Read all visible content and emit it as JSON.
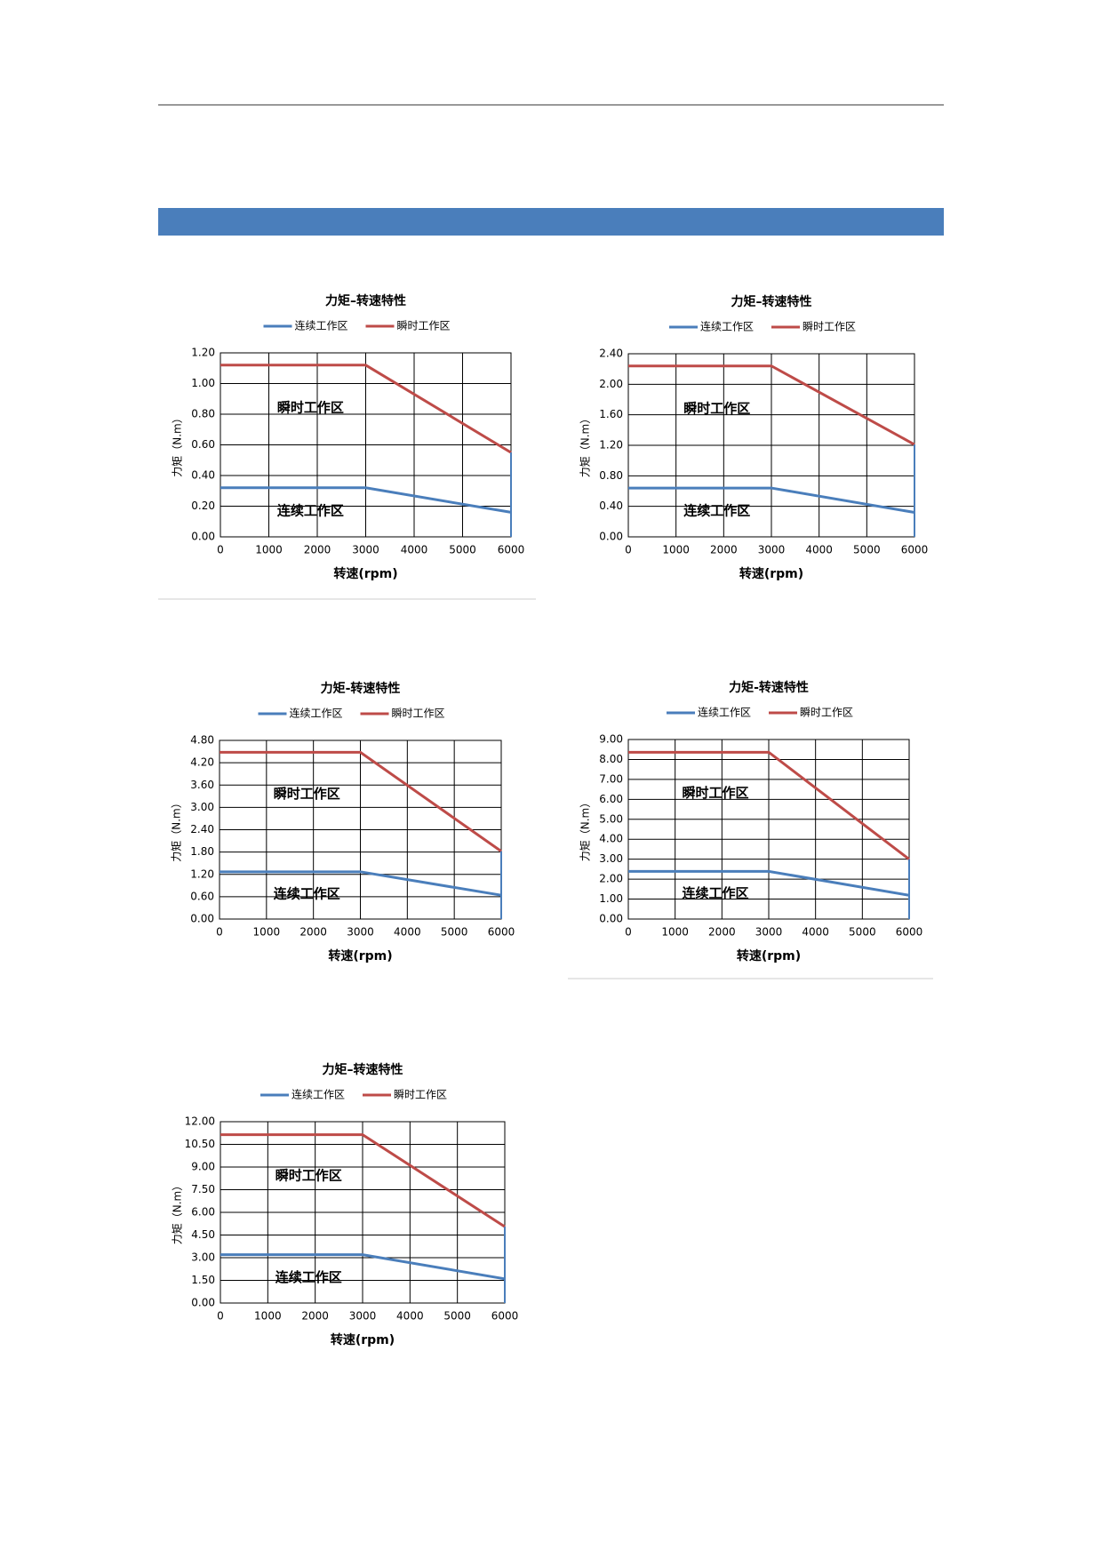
{
  "chart_data": [
    {
      "type": "line",
      "title": "力矩–转速特性",
      "x_label": "转速(rpm)",
      "y_label": "力矩（N.m）",
      "annotations": [
        "瞬时工作区",
        "连续工作区"
      ],
      "grid": true,
      "x": [
        0,
        3000,
        6000
      ],
      "xlim": [
        0,
        6000
      ],
      "xticks": [
        0,
        1000,
        2000,
        3000,
        4000,
        5000,
        6000
      ],
      "ylim": [
        0,
        1.2
      ],
      "yticks": [
        {
          "value": 0,
          "label": "0.00"
        },
        {
          "value": 0.2,
          "label": "0.20"
        },
        {
          "value": 0.4,
          "label": "0.40"
        },
        {
          "value": 0.6,
          "label": "0.60"
        },
        {
          "value": 0.8,
          "label": "0.80"
        },
        {
          "value": 1.0,
          "label": "1.00"
        },
        {
          "value": 1.2,
          "label": "1.20"
        }
      ],
      "series": [
        {
          "name": "连续工作区",
          "color": "#4a7ebb",
          "values": [
            0.32,
            0.32,
            0.16
          ]
        },
        {
          "name": "瞬时工作区",
          "color": "#be4b48",
          "values": [
            1.12,
            1.12,
            0.55
          ]
        }
      ]
    },
    {
      "type": "line",
      "title": "力矩–转速特性",
      "x_label": "转速(rpm)",
      "y_label": "力矩（N.m）",
      "annotations": [
        "瞬时工作区",
        "连续工作区"
      ],
      "grid": true,
      "x": [
        0,
        3000,
        6000
      ],
      "xlim": [
        0,
        6000
      ],
      "xticks": [
        0,
        1000,
        2000,
        3000,
        4000,
        5000,
        6000
      ],
      "ylim": [
        0,
        2.4
      ],
      "yticks": [
        {
          "value": 0,
          "label": "0.00"
        },
        {
          "value": 0.4,
          "label": "0.40"
        },
        {
          "value": 0.8,
          "label": "0.80"
        },
        {
          "value": 1.2,
          "label": "1.20"
        },
        {
          "value": 1.6,
          "label": "1.60"
        },
        {
          "value": 2.0,
          "label": "2.00"
        },
        {
          "value": 2.4,
          "label": "2.40"
        }
      ],
      "series": [
        {
          "name": "连续工作区",
          "color": "#4a7ebb",
          "values": [
            0.64,
            0.64,
            0.32
          ]
        },
        {
          "name": "瞬时工作区",
          "color": "#be4b48",
          "values": [
            2.24,
            2.24,
            1.21
          ]
        }
      ]
    },
    {
      "type": "line",
      "title": "力矩-转速特性",
      "x_label": "转速(rpm)",
      "y_label": "力矩（N.m）",
      "annotations": [
        "瞬时工作区",
        "连续工作区"
      ],
      "grid": true,
      "x": [
        0,
        3000,
        6000
      ],
      "xlim": [
        0,
        6000
      ],
      "xticks": [
        0,
        1000,
        2000,
        3000,
        4000,
        5000,
        6000
      ],
      "ylim": [
        0,
        4.8
      ],
      "yticks": [
        {
          "value": 0,
          "label": "0.00"
        },
        {
          "value": 0.6,
          "label": "0.60"
        },
        {
          "value": 1.2,
          "label": "1.20"
        },
        {
          "value": 1.8,
          "label": "1.80"
        },
        {
          "value": 2.4,
          "label": "2.40"
        },
        {
          "value": 3.0,
          "label": "3.00"
        },
        {
          "value": 3.6,
          "label": "3.60"
        },
        {
          "value": 4.2,
          "label": "4.20"
        },
        {
          "value": 4.8,
          "label": "4.80"
        }
      ],
      "series": [
        {
          "name": "连续工作区",
          "color": "#4a7ebb",
          "values": [
            1.27,
            1.27,
            0.64
          ]
        },
        {
          "name": "瞬时工作区",
          "color": "#be4b48",
          "values": [
            4.48,
            4.48,
            1.82
          ]
        }
      ]
    },
    {
      "type": "line",
      "title": "力矩-转速特性",
      "x_label": "转速(rpm)",
      "y_label": "力矩（N.m）",
      "annotations": [
        "瞬时工作区",
        "连续工作区"
      ],
      "grid": true,
      "x": [
        0,
        3000,
        6000
      ],
      "xlim": [
        0,
        6000
      ],
      "xticks": [
        0,
        1000,
        2000,
        3000,
        4000,
        5000,
        6000
      ],
      "ylim": [
        0,
        9
      ],
      "yticks": [
        {
          "value": 0,
          "label": "0.00"
        },
        {
          "value": 1,
          "label": "1.00"
        },
        {
          "value": 2,
          "label": "2.00"
        },
        {
          "value": 3,
          "label": "3.00"
        },
        {
          "value": 4,
          "label": "4.00"
        },
        {
          "value": 5,
          "label": "5.00"
        },
        {
          "value": 6,
          "label": "6.00"
        },
        {
          "value": 7,
          "label": "7.00"
        },
        {
          "value": 8,
          "label": "8.00"
        },
        {
          "value": 9,
          "label": "9.00"
        }
      ],
      "series": [
        {
          "name": "连续工作区",
          "color": "#4a7ebb",
          "values": [
            2.39,
            2.39,
            1.19
          ]
        },
        {
          "name": "瞬时工作区",
          "color": "#be4b48",
          "values": [
            8.36,
            8.36,
            3.0
          ]
        }
      ]
    },
    {
      "type": "line",
      "title": "力矩–转速特性",
      "x_label": "转速(rpm)",
      "y_label": "力矩（N.m）",
      "annotations": [
        "瞬时工作区",
        "连续工作区"
      ],
      "grid": true,
      "x": [
        0,
        3000,
        6000
      ],
      "xlim": [
        0,
        6000
      ],
      "xticks": [
        0,
        1000,
        2000,
        3000,
        4000,
        5000,
        6000
      ],
      "ylim": [
        0,
        12
      ],
      "yticks": [
        {
          "value": 0,
          "label": "0.00"
        },
        {
          "value": 1.5,
          "label": "1.50"
        },
        {
          "value": 3,
          "label": "3.00"
        },
        {
          "value": 4.5,
          "label": "4.50"
        },
        {
          "value": 6,
          "label": "6.00"
        },
        {
          "value": 7.5,
          "label": "7.50"
        },
        {
          "value": 9,
          "label": "9.00"
        },
        {
          "value": 10.5,
          "label": "10.50"
        },
        {
          "value": 12,
          "label": "12.00"
        }
      ],
      "series": [
        {
          "name": "连续工作区",
          "color": "#4a7ebb",
          "values": [
            3.2,
            3.2,
            1.6
          ]
        },
        {
          "name": "瞬时工作区",
          "color": "#be4b48",
          "values": [
            11.14,
            11.14,
            5.05
          ]
        }
      ]
    }
  ]
}
